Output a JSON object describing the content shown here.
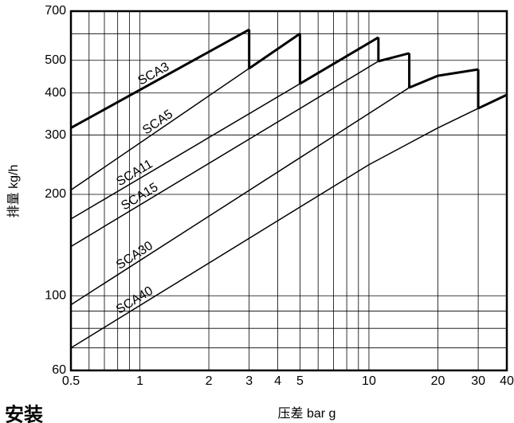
{
  "chart_data": {
    "type": "line",
    "log_x": true,
    "log_y": true,
    "grid": true,
    "color": "#000000",
    "xlabel": "压差 bar g",
    "ylabel": "排量 kg/h",
    "annotation": "安装",
    "xlim": [
      0.5,
      40
    ],
    "ylim": [
      60,
      700
    ],
    "xticks": [
      0.5,
      1,
      2,
      3,
      4,
      5,
      10,
      20,
      30,
      40
    ],
    "yticks": [
      60,
      100,
      200,
      300,
      400,
      500,
      700
    ],
    "xgrid": [
      0.5,
      0.6,
      0.7,
      0.8,
      0.9,
      1,
      2,
      3,
      4,
      5,
      6,
      7,
      8,
      9,
      10,
      20,
      30,
      40
    ],
    "ygrid": [
      60,
      70,
      80,
      90,
      100,
      200,
      300,
      400,
      500,
      600,
      700
    ],
    "series": [
      {
        "name": "SCA3",
        "x": [
          0.5,
          3
        ],
        "values": [
          315,
          617
        ]
      },
      {
        "name": "SCA5",
        "x": [
          0.5,
          5
        ],
        "values": [
          206,
          600
        ]
      },
      {
        "name": "SCA11",
        "x": [
          0.5,
          11
        ],
        "values": [
          169,
          585
        ]
      },
      {
        "name": "SCA15",
        "x": [
          0.5,
          11,
          15
        ],
        "values": [
          140,
          497,
          525
        ]
      },
      {
        "name": "SCA30",
        "x": [
          0.5,
          15,
          20,
          30
        ],
        "values": [
          94,
          415,
          450,
          470
        ]
      },
      {
        "name": "SCA40",
        "x": [
          0.5,
          10,
          20,
          30,
          40
        ],
        "values": [
          70,
          245,
          315,
          360,
          395
        ]
      }
    ]
  }
}
